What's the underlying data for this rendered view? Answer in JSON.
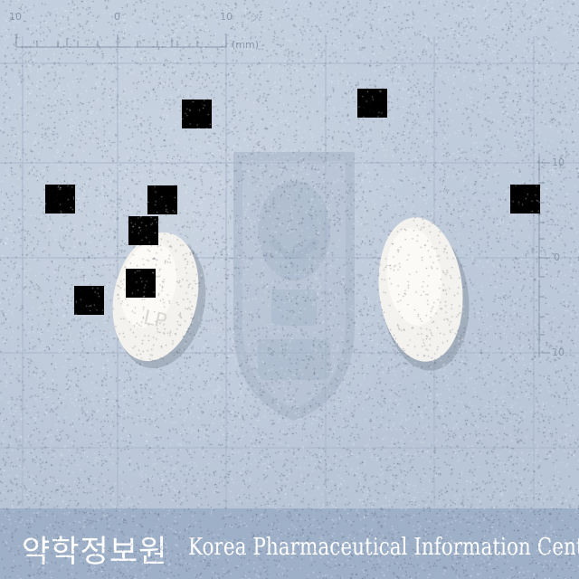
{
  "ruler": {
    "top_labels": [
      "10",
      "0",
      "10"
    ],
    "unit": "(mm)",
    "right_labels": [
      "10",
      "0",
      "10"
    ]
  },
  "footer": {
    "korean_name": "약학정보원",
    "english_name": "Korea Pharmaceutical Information Center"
  },
  "watermark": {
    "icon": "shield-emblem-icon"
  },
  "pills": [
    {
      "side": "front",
      "shape": "oval",
      "color": "#f4f3ef",
      "imprint": "LP"
    },
    {
      "side": "back",
      "shape": "oval",
      "color": "#f4f3ef"
    }
  ],
  "redactions": 10
}
